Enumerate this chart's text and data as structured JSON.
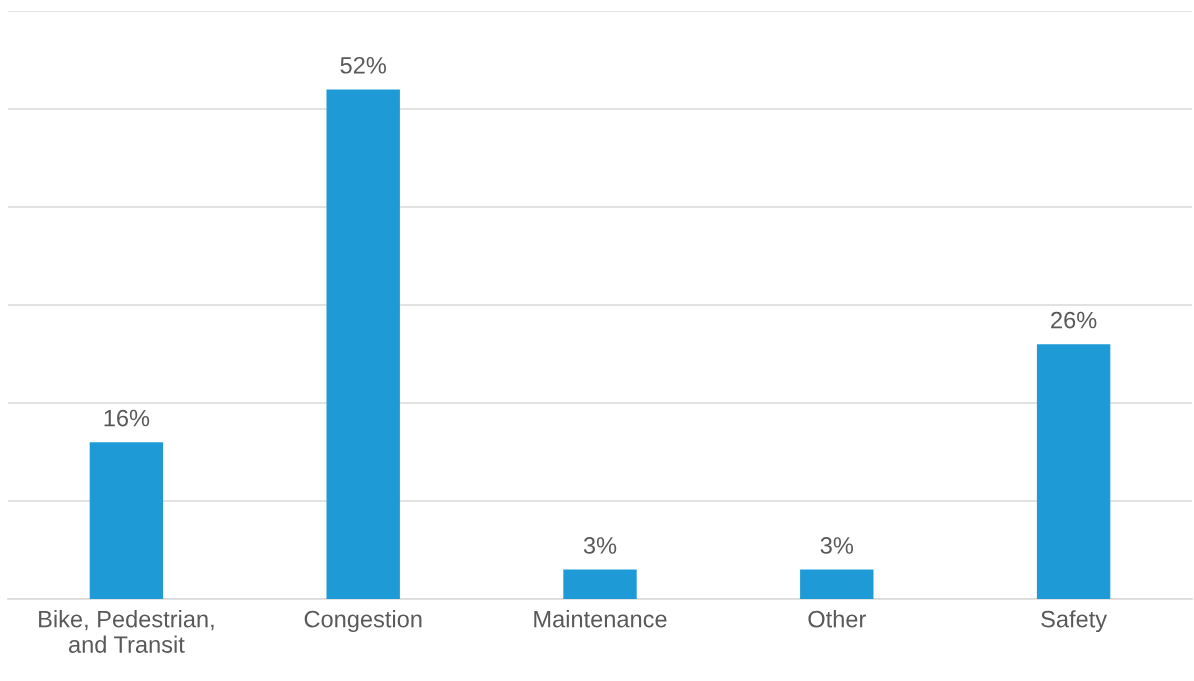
{
  "chart_data": {
    "type": "bar",
    "categories": [
      "Bike, Pedestrian,\nand Transit",
      "Congestion",
      "Maintenance",
      "Other",
      "Safety"
    ],
    "values": [
      16,
      52,
      3,
      3,
      26
    ],
    "value_labels": [
      "16%",
      "52%",
      "3%",
      "3%",
      "26%"
    ],
    "color": "#1e9bd7",
    "ylim": [
      0,
      60
    ],
    "yticks": [
      0,
      10,
      20,
      30,
      40,
      50,
      60
    ],
    "grid": "y",
    "tick_labels": "x"
  }
}
